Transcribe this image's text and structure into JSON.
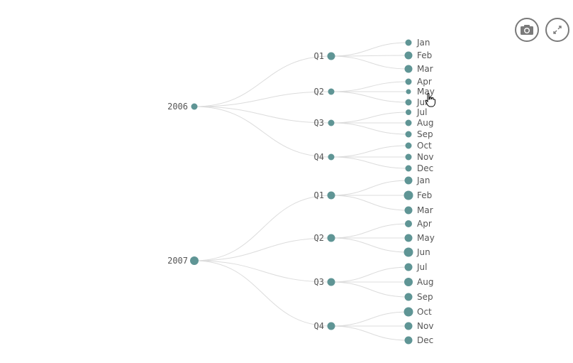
{
  "toolbar": {
    "camera": {
      "icon": "camera-icon"
    },
    "expand": {
      "icon": "expand-icon"
    }
  },
  "colors": {
    "node": "#5f9595",
    "link": "#dcdcdc",
    "text": "#555555",
    "button_border": "#7a7a7a"
  },
  "tree": {
    "years": [
      {
        "label": "2006",
        "quarters": [
          {
            "label": "Q1",
            "months": [
              "Jan",
              "Feb",
              "Mar"
            ]
          },
          {
            "label": "Q2",
            "months": [
              "Apr",
              "May",
              "Jun"
            ]
          },
          {
            "label": "Q3",
            "months": [
              "Jul",
              "Aug",
              "Sep"
            ]
          },
          {
            "label": "Q4",
            "months": [
              "Oct",
              "Nov",
              "Dec"
            ]
          }
        ]
      },
      {
        "label": "2007",
        "quarters": [
          {
            "label": "Q1",
            "months": [
              "Jan",
              "Feb",
              "Mar"
            ]
          },
          {
            "label": "Q2",
            "months": [
              "Apr",
              "May",
              "Jun"
            ]
          },
          {
            "label": "Q3",
            "months": [
              "Jul",
              "Aug",
              "Sep"
            ]
          },
          {
            "label": "Q4",
            "months": [
              "Oct",
              "Nov",
              "Dec"
            ]
          }
        ]
      }
    ]
  }
}
